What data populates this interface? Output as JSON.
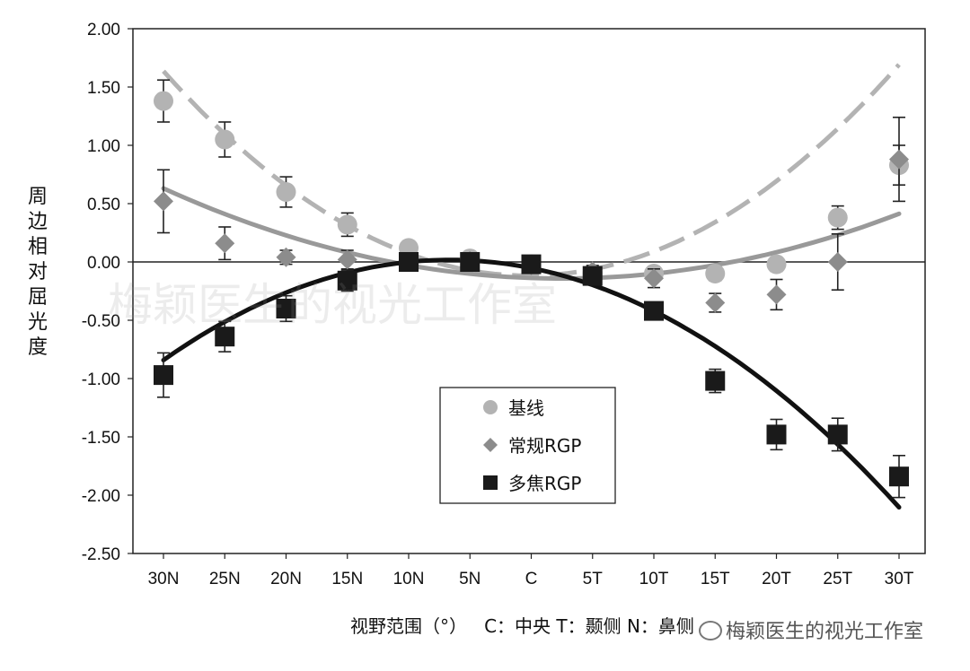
{
  "chart_data": {
    "type": "scatter",
    "categories": [
      "30N",
      "25N",
      "20N",
      "15N",
      "10N",
      "5N",
      "C",
      "5T",
      "10T",
      "15T",
      "20T",
      "25T",
      "30T"
    ],
    "ylabel": "周边相对屈光度",
    "xlabel": "视野范围（°）   C：中央 T：颞侧 N：鼻侧",
    "ylim": [
      -2.5,
      2.0
    ],
    "yticks": [
      "2.00",
      "1.50",
      "1.00",
      "0.50",
      "0.00",
      "-0.50",
      "-1.00",
      "-1.50",
      "-2.00",
      "-2.50"
    ],
    "grid": false,
    "legend_position": "center-right",
    "series": [
      {
        "name": "基线",
        "marker": "circle",
        "color": "#b3b3b3",
        "values": [
          1.38,
          1.05,
          0.6,
          0.32,
          0.12,
          0.03,
          -0.02,
          -0.1,
          -0.1,
          -0.1,
          -0.02,
          0.38,
          0.83
        ],
        "error": [
          0.18,
          0.15,
          0.13,
          0.1,
          0.05,
          0.04,
          0.04,
          0.04,
          0.06,
          0.06,
          0.06,
          0.1,
          0.17
        ],
        "fit": {
          "style": "dashed",
          "color": "#b3b3b3",
          "coef": [
            0.00198,
            0.00094,
            -0.1178
          ]
        }
      },
      {
        "name": "常规RGP",
        "marker": "diamond",
        "color": "#8c8c8c",
        "values": [
          0.52,
          0.16,
          0.04,
          0.02,
          0.0,
          0.01,
          -0.03,
          -0.08,
          -0.14,
          -0.35,
          -0.28,
          0.0,
          0.88
        ],
        "error": [
          0.27,
          0.14,
          0.06,
          0.08,
          0.04,
          0.04,
          0.04,
          0.05,
          0.08,
          0.08,
          0.13,
          0.24,
          0.36
        ],
        "fit": {
          "style": "solid",
          "color": "#999999",
          "coef": [
            0.000733,
            -0.00362,
            -0.1378
          ]
        }
      },
      {
        "name": "多焦RGP",
        "marker": "square",
        "color": "#1a1a1a",
        "values": [
          -0.97,
          -0.64,
          -0.4,
          -0.16,
          0.0,
          0.0,
          -0.02,
          -0.12,
          -0.42,
          -1.02,
          -1.48,
          -1.48,
          -1.84
        ],
        "error": [
          0.19,
          0.13,
          0.11,
          0.09,
          0.05,
          0.04,
          0.04,
          0.05,
          0.06,
          0.1,
          0.13,
          0.14,
          0.18
        ],
        "fit": {
          "style": "solid",
          "color": "#111111",
          "coef": [
            -0.001578,
            -0.02104,
            -0.0526
          ]
        }
      }
    ]
  },
  "watermark": {
    "center": "梅颖医生的视光工作室",
    "corner": "梅颖医生的视光工作室"
  }
}
